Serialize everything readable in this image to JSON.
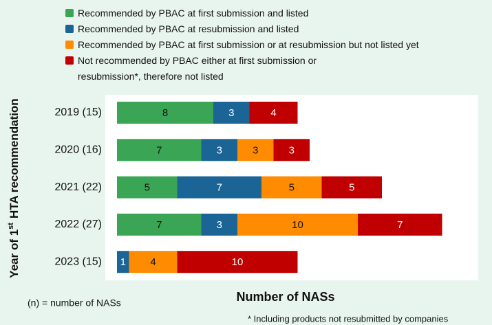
{
  "chart_data": {
    "type": "stacked_barh",
    "y_label": {
      "text": "Year of 1",
      "sup": "st",
      "rest": "HTA recommendation"
    },
    "x_label": "Number of NASs",
    "notes": [
      "(n) = number of NASs",
      "* Including products not resubmitted by companies"
    ],
    "categories": [
      "2019 (15)",
      "2020 (16)",
      "2021 (22)",
      "2022 (27)",
      "2023 (15)"
    ],
    "xlim": [
      0,
      30
    ],
    "series": [
      {
        "name": "Recommended by PBAC at first submission and listed",
        "color": "#3aa655",
        "label_color": "#111111",
        "values": [
          8,
          7,
          5,
          7,
          null
        ]
      },
      {
        "name": "Recommended by PBAC at resubmission and listed",
        "color": "#1a6496",
        "label_color": "#ffffff",
        "values": [
          3,
          3,
          7,
          3,
          1
        ]
      },
      {
        "name": "Recommended by PBAC at first submission or at resubmission but not listed yet",
        "color": "#ff8c00",
        "label_color": "#111111",
        "values": [
          null,
          3,
          5,
          10,
          4
        ]
      },
      {
        "name": "Not recommended by PBAC either at first submission or resubmission*, therefore not listed",
        "color": "#c00000",
        "label_color": "#ffffff",
        "values": [
          4,
          3,
          5,
          7,
          10
        ]
      }
    ]
  }
}
